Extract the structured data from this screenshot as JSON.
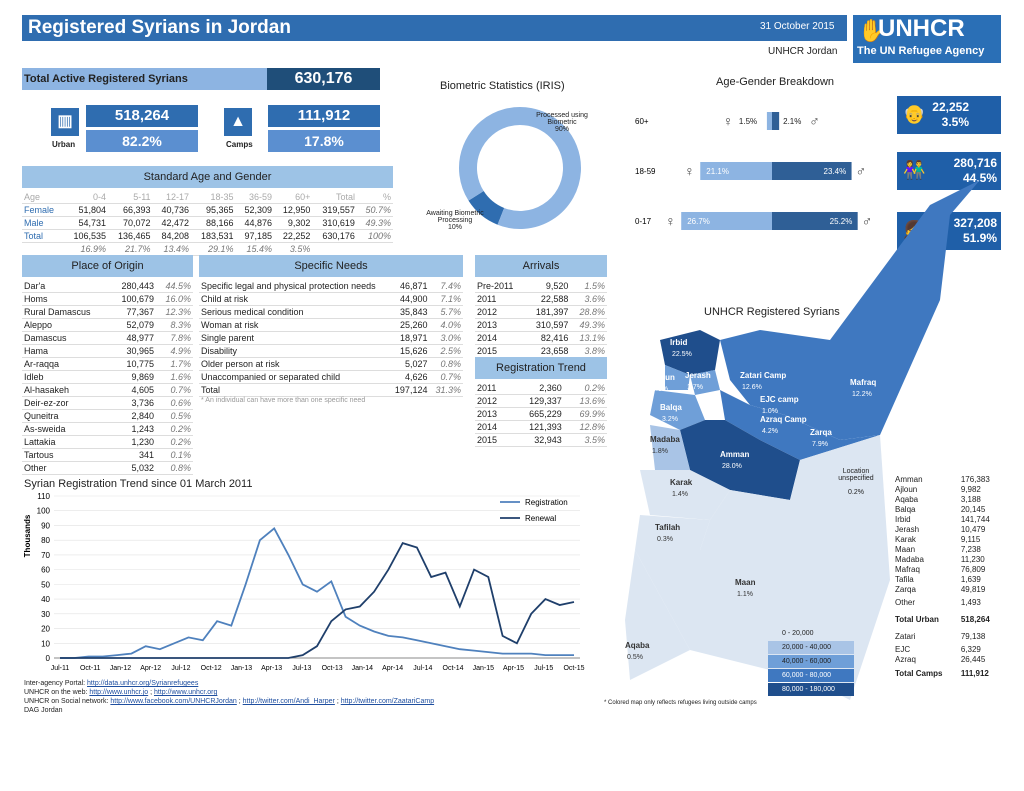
{
  "header": {
    "title": "Registered Syrians in Jordan",
    "date": "31 October 2015",
    "office": "UNHCR Jordan",
    "logo": "UNHCR",
    "logo_sub": "The UN Refugee Agency"
  },
  "colors": {
    "dark_blue": "#1f4e79",
    "blue": "#2f6db0",
    "mid_blue": "#5b8fd0",
    "light_blue": "#9dc3e6"
  },
  "total": {
    "label": "Total Active Registered Syrians",
    "value": "630,176"
  },
  "urban": {
    "label": "Urban",
    "value": "518,264",
    "pct": "82.2%",
    "icon": "building-icon"
  },
  "camps": {
    "label": "Camps",
    "value": "111,912",
    "pct": "17.8%",
    "icon": "tent-icon"
  },
  "age_gender": {
    "title": "Standard Age and Gender",
    "headers": [
      "Age",
      "0-4",
      "5-11",
      "12-17",
      "18-35",
      "36-59",
      "60+",
      "Total",
      "%"
    ],
    "rows": [
      [
        "Female",
        "51,804",
        "66,393",
        "40,736",
        "95,365",
        "52,309",
        "12,950",
        "319,557",
        "50.7%"
      ],
      [
        "Male",
        "54,731",
        "70,072",
        "42,472",
        "88,166",
        "44,876",
        "9,302",
        "310,619",
        "49.3%"
      ],
      [
        "Total",
        "106,535",
        "136,465",
        "84,208",
        "183,531",
        "97,185",
        "22,252",
        "630,176",
        "100%"
      ],
      [
        "",
        "16.9%",
        "21.7%",
        "13.4%",
        "29.1%",
        "15.4%",
        "3.5%",
        "",
        ""
      ]
    ]
  },
  "origin": {
    "title": "Place of Origin",
    "rows": [
      [
        "Dar'a",
        "280,443",
        "44.5%"
      ],
      [
        "Homs",
        "100,679",
        "16.0%"
      ],
      [
        "Rural Damascus",
        "77,367",
        "12.3%"
      ],
      [
        "Aleppo",
        "52,079",
        "8.3%"
      ],
      [
        "Damascus",
        "48,977",
        "7.8%"
      ],
      [
        "Hama",
        "30,965",
        "4.9%"
      ],
      [
        "Ar-raqqa",
        "10,775",
        "1.7%"
      ],
      [
        "Idleb",
        "9,869",
        "1.6%"
      ],
      [
        "Al-hasakeh",
        "4,605",
        "0.7%"
      ],
      [
        "Deir-ez-zor",
        "3,736",
        "0.6%"
      ],
      [
        "Quneitra",
        "2,840",
        "0.5%"
      ],
      [
        "As-sweida",
        "1,243",
        "0.2%"
      ],
      [
        "Lattakia",
        "1,230",
        "0.2%"
      ],
      [
        "Tartous",
        "341",
        "0.1%"
      ],
      [
        "Other",
        "5,032",
        "0.8%"
      ]
    ]
  },
  "needs": {
    "title": "Specific Needs",
    "rows": [
      [
        "Specific legal and physical protection needs",
        "46,871",
        "7.4%"
      ],
      [
        "Child at risk",
        "44,900",
        "7.1%"
      ],
      [
        "Serious medical condition",
        "35,843",
        "5.7%"
      ],
      [
        "Woman at risk",
        "25,260",
        "4.0%"
      ],
      [
        "Single parent",
        "18,971",
        "3.0%"
      ],
      [
        "Disability",
        "15,626",
        "2.5%"
      ],
      [
        "Older person at risk",
        "5,027",
        "0.8%"
      ],
      [
        "Unaccompanied or separated child",
        "4,626",
        "0.7%"
      ],
      [
        "Total",
        "197,124",
        "31.3%"
      ]
    ],
    "note": "* An individual can have more than one specific need"
  },
  "arrivals": {
    "title": "Arrivals",
    "rows": [
      [
        "Pre-2011",
        "9,520",
        "1.5%"
      ],
      [
        "2011",
        "22,588",
        "3.6%"
      ],
      [
        "2012",
        "181,397",
        "28.8%"
      ],
      [
        "2013",
        "310,597",
        "49.3%"
      ],
      [
        "2014",
        "82,416",
        "13.1%"
      ],
      [
        "2015",
        "23,658",
        "3.8%"
      ]
    ]
  },
  "reg_trend": {
    "title": "Registration Trend",
    "rows": [
      [
        "2011",
        "2,360",
        "0.2%"
      ],
      [
        "2012",
        "129,337",
        "13.6%"
      ],
      [
        "2013",
        "665,229",
        "69.9%"
      ],
      [
        "2014",
        "121,393",
        "12.8%"
      ],
      [
        "2015",
        "32,943",
        "3.5%"
      ]
    ]
  },
  "biometric": {
    "title": "Biometric Statistics (IRIS)",
    "processed_label": "Processed using Biometric",
    "processed_pct": "90%",
    "awaiting_label": "Awaiting Biometric Processing",
    "awaiting_pct": "10%",
    "processed_value": 90,
    "awaiting_value": 10
  },
  "age_breakdown": {
    "title": "Age-Gender Breakdown",
    "rows": [
      {
        "age": "60+",
        "female_pct": "1.5%",
        "male_pct": "2.1%",
        "female": 1.5,
        "male": 2.1
      },
      {
        "age": "18-59",
        "female_pct": "21.1%",
        "male_pct": "23.4%",
        "female": 21.1,
        "male": 23.4
      },
      {
        "age": "0-17",
        "female_pct": "26.7%",
        "male_pct": "25.2%",
        "female": 26.7,
        "male": 25.2
      }
    ],
    "side": [
      {
        "value": "22,252",
        "pct": "3.5%",
        "icon": "elderly-icon"
      },
      {
        "value": "280,716",
        "pct": "44.5%",
        "icon": "adults-icon"
      },
      {
        "value": "327,208",
        "pct": "51.9%",
        "icon": "children-icon"
      }
    ]
  },
  "map": {
    "title": "UNHCR Registered Syrians",
    "labels": [
      {
        "name": "Irbid",
        "pct": "22.5%"
      },
      {
        "name": "Ajloun",
        "pct": "1.6%"
      },
      {
        "name": "Jerash",
        "pct": "1.7%"
      },
      {
        "name": "Zatari Camp",
        "pct": "12.6%"
      },
      {
        "name": "Mafraq",
        "pct": "12.2%"
      },
      {
        "name": "EJC camp",
        "pct": "1.0%"
      },
      {
        "name": "Balqa",
        "pct": "3.2%"
      },
      {
        "name": "Azraq Camp",
        "pct": "4.2%"
      },
      {
        "name": "Zarqa",
        "pct": "7.9%"
      },
      {
        "name": "Madaba",
        "pct": "1.8%"
      },
      {
        "name": "Amman",
        "pct": "28.0%"
      },
      {
        "name": "Karak",
        "pct": "1.4%"
      },
      {
        "name": "Tafilah",
        "pct": "0.3%"
      },
      {
        "name": "Maan",
        "pct": "1.1%"
      },
      {
        "name": "Aqaba",
        "pct": "0.5%"
      }
    ],
    "unspecified_label": "Location unspecified",
    "unspecified_pct": "0.2%",
    "legend": [
      "0 - 20,000",
      "20,000 - 40,000",
      "40,000 - 60,000",
      "60,000 - 80,000",
      "80,000 - 180,000"
    ],
    "legend_colors": [
      "#dce6f2",
      "#a9c4e6",
      "#6f9fd8",
      "#3f78c0",
      "#1f4e8c"
    ],
    "note": "* Colored map only reflects refugees living outside camps"
  },
  "gov_stats": [
    [
      "Amman",
      "176,383"
    ],
    [
      "Ajloun",
      "9,982"
    ],
    [
      "Aqaba",
      "3,188"
    ],
    [
      "Balqa",
      "20,145"
    ],
    [
      "Irbid",
      "141,744"
    ],
    [
      "Jerash",
      "10,479"
    ],
    [
      "Karak",
      "9,115"
    ],
    [
      "Maan",
      "7,238"
    ],
    [
      "Madaba",
      "11,230"
    ],
    [
      "Mafraq",
      "76,809"
    ],
    [
      "Tafila",
      "1,639"
    ],
    [
      "Zarqa",
      "49,819"
    ],
    [
      "Other",
      "1,493"
    ],
    [
      "Total Urban",
      "518,264"
    ],
    [
      "Zatari",
      "79,138"
    ],
    [
      "EJC",
      "6,329"
    ],
    [
      "Azraq",
      "26,445"
    ],
    [
      "Total Camps",
      "111,912"
    ]
  ],
  "chart_data": {
    "type": "line",
    "title": "Syrian Registration Trend since  01 March 2011",
    "ylabel": "Thousands",
    "ylim": [
      0,
      110
    ],
    "yticks": [
      "0",
      "10",
      "20",
      "30",
      "40",
      "50",
      "60",
      "70",
      "80",
      "90",
      "100",
      "110"
    ],
    "x_labels": [
      "Jul-11",
      "Oct-11",
      "Jan-12",
      "Apr-12",
      "Jul-12",
      "Oct-12",
      "Jan-13",
      "Apr-13",
      "Jul-13",
      "Oct-13",
      "Jan-14",
      "Apr-14",
      "Jul-14",
      "Oct-14",
      "Jan-15",
      "Apr-15",
      "Jul-15",
      "Oct-15"
    ],
    "legend_position": "top-right",
    "series": [
      {
        "name": "Registration",
        "color": "#4f81bd",
        "values": [
          0,
          0,
          1,
          1,
          2,
          3,
          8,
          6,
          10,
          14,
          12,
          25,
          22,
          50,
          80,
          88,
          70,
          50,
          45,
          52,
          28,
          22,
          18,
          15,
          14,
          12,
          10,
          8,
          6,
          5,
          4,
          3,
          3,
          3,
          2,
          2,
          2
        ]
      },
      {
        "name": "Renewal",
        "color": "#1f3f6b",
        "values": [
          0,
          0,
          0,
          0,
          0,
          0,
          0,
          0,
          0,
          0,
          0,
          0,
          0,
          0,
          0,
          0,
          0,
          2,
          8,
          25,
          33,
          35,
          45,
          60,
          78,
          75,
          55,
          58,
          35,
          60,
          55,
          15,
          10,
          30,
          40,
          36,
          38
        ]
      }
    ]
  }
}
